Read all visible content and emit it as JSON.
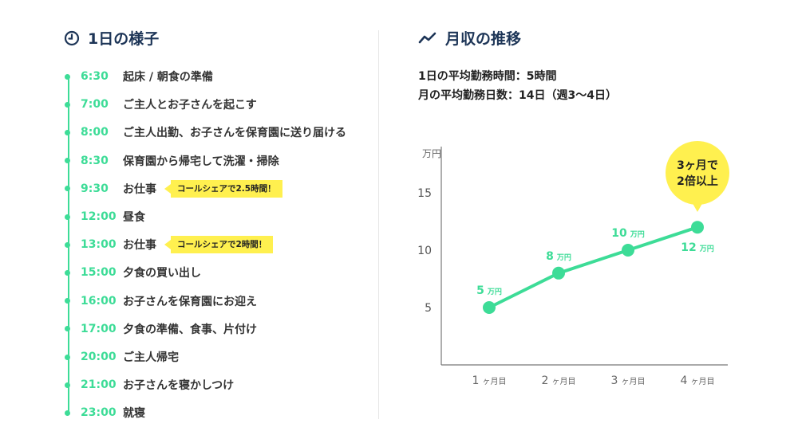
{
  "left": {
    "title": "1日の様子",
    "icon": "clock-icon",
    "items": [
      {
        "time": "6:30",
        "text": "起床 / 朝食の準備"
      },
      {
        "time": "7:00",
        "text": "ご主人とお子さんを起こす"
      },
      {
        "time": "8:00",
        "text": "ご主人出勤、お子さんを保育園に送り届ける"
      },
      {
        "time": "8:30",
        "text": "保育園から帰宅して洗濯・掃除"
      },
      {
        "time": "9:30",
        "text": "お仕事",
        "note": "コールシェアで2.5時間！"
      },
      {
        "time": "12:00",
        "text": "昼食"
      },
      {
        "time": "13:00",
        "text": "お仕事",
        "note": "コールシェアで2時間！"
      },
      {
        "time": "15:00",
        "text": "夕食の買い出し"
      },
      {
        "time": "16:00",
        "text": "お子さんを保育園にお迎え"
      },
      {
        "time": "17:00",
        "text": "夕食の準備、食事、片付け"
      },
      {
        "time": "20:00",
        "text": "ご主人帰宅"
      },
      {
        "time": "21:00",
        "text": "お子さんを寝かしつけ"
      },
      {
        "time": "23:00",
        "text": "就寝"
      }
    ]
  },
  "right": {
    "title": "月収の推移",
    "icon": "trend-line-icon",
    "stats": [
      "1日の平均勤務時間：5時間",
      "月の平均勤務日数：14日（週3〜4日）"
    ]
  },
  "chart_data": {
    "type": "line",
    "title": "",
    "ylabel": "万円",
    "xlabel": "",
    "categories": [
      "1ヶ月目",
      "2ヶ月目",
      "3ヶ月目",
      "4ヶ月目"
    ],
    "category_numbers": [
      "1",
      "2",
      "3",
      "4"
    ],
    "category_suffix": "ヶ月目",
    "values": [
      5,
      8,
      10,
      12
    ],
    "value_unit": "万円",
    "ylim": [
      0,
      20
    ],
    "yticks": [
      5,
      10,
      15
    ],
    "grid": false,
    "line_color": "#3ddc97",
    "callout": {
      "line1": "3ヶ月で",
      "line2": "2倍以上",
      "color": "#fff04f"
    }
  }
}
